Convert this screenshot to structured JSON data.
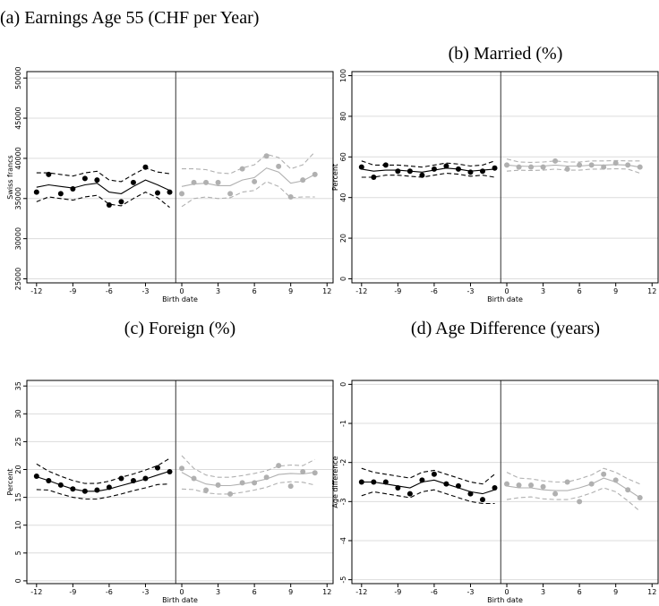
{
  "chart_data": [
    {
      "type": "scatter",
      "title": "(a) Earnings Age 55 (CHF per Year)",
      "xlabel": "Birth date",
      "ylabel": "Swiss francs",
      "xlim": [
        -12.8,
        12.5
      ],
      "ylim": [
        24500,
        50800
      ],
      "xticks": [
        -12,
        -9,
        -6,
        -3,
        0,
        3,
        6,
        9,
        12
      ],
      "yticks": [
        25000,
        30000,
        35000,
        40000,
        45000,
        50000
      ],
      "grid": true,
      "cutoff": -0.5,
      "series": [
        {
          "style": "markers",
          "color": "#000000",
          "x": [
            -12,
            -11,
            -10,
            -9,
            -8,
            -7,
            -6,
            -5,
            -4,
            -3,
            -2,
            -1
          ],
          "values": [
            35800,
            38000,
            35600,
            36200,
            37500,
            37300,
            34200,
            34600,
            37000,
            38900,
            35700,
            35800
          ]
        },
        {
          "style": "solid",
          "color": "#000000",
          "x": [
            -12,
            -11,
            -10,
            -9,
            -8,
            -7,
            -6,
            -5,
            -4,
            -3,
            -2,
            -1
          ],
          "values": [
            36400,
            36700,
            36500,
            36300,
            36700,
            36900,
            35800,
            35600,
            36500,
            37300,
            36700,
            36000
          ]
        },
        {
          "style": "dashed",
          "color": "#000000",
          "x": [
            -12,
            -11,
            -10,
            -9,
            -8,
            -7,
            -6,
            -5,
            -4,
            -3,
            -2,
            -1
          ],
          "values": [
            38200,
            38200,
            38000,
            37800,
            38200,
            38400,
            37300,
            37100,
            38000,
            38800,
            38300,
            38100
          ]
        },
        {
          "style": "dashed",
          "color": "#000000",
          "x": [
            -12,
            -11,
            -10,
            -9,
            -8,
            -7,
            -6,
            -5,
            -4,
            -3,
            -2,
            -1
          ],
          "values": [
            34600,
            35200,
            35000,
            34800,
            35200,
            35400,
            34300,
            34100,
            35000,
            35800,
            35100,
            33900
          ]
        },
        {
          "style": "markers",
          "color": "#b0b0b0",
          "x": [
            0,
            1,
            2,
            3,
            4,
            5,
            6,
            7,
            8,
            9,
            10,
            11
          ],
          "values": [
            35600,
            37000,
            37000,
            37000,
            35600,
            38700,
            37100,
            40300,
            39000,
            35200,
            37300,
            38000
          ]
        },
        {
          "style": "solid",
          "color": "#b0b0b0",
          "x": [
            0,
            1,
            2,
            3,
            4,
            5,
            6,
            7,
            8,
            9,
            10,
            11
          ],
          "values": [
            36500,
            36800,
            36900,
            36600,
            36600,
            37300,
            37600,
            38800,
            38300,
            36900,
            37200,
            38000
          ]
        },
        {
          "style": "dashed",
          "color": "#b0b0b0",
          "x": [
            0,
            1,
            2,
            3,
            4,
            5,
            6,
            7,
            8,
            9,
            10,
            11
          ],
          "values": [
            38700,
            38700,
            38600,
            38200,
            38100,
            38800,
            39200,
            40500,
            40100,
            38700,
            39200,
            40800
          ]
        },
        {
          "style": "dashed",
          "color": "#b0b0b0",
          "x": [
            0,
            1,
            2,
            3,
            4,
            5,
            6,
            7,
            8,
            9,
            10,
            11
          ],
          "values": [
            34000,
            35000,
            35200,
            35000,
            35100,
            35800,
            36000,
            37100,
            36500,
            35100,
            35200,
            35200
          ]
        }
      ]
    },
    {
      "type": "scatter",
      "title": "(b) Married (%)",
      "xlabel": "Birth date",
      "ylabel": "Percent",
      "xlim": [
        -12.8,
        12.5
      ],
      "ylim": [
        -2,
        102
      ],
      "xticks": [
        -12,
        -9,
        -6,
        -3,
        0,
        3,
        6,
        9,
        12
      ],
      "yticks": [
        0,
        20,
        40,
        60,
        80,
        100
      ],
      "grid": true,
      "cutoff": -0.5,
      "series": [
        {
          "style": "markers",
          "color": "#000000",
          "x": [
            -12,
            -11,
            -10,
            -9,
            -8,
            -7,
            -6,
            -5,
            -4,
            -3,
            -2,
            -1
          ],
          "values": [
            55,
            50,
            56,
            53,
            53,
            51,
            54,
            55.5,
            54,
            52.5,
            53,
            54.5
          ]
        },
        {
          "style": "solid",
          "color": "#000000",
          "x": [
            -12,
            -11,
            -10,
            -9,
            -8,
            -7,
            -6,
            -5,
            -4,
            -3,
            -2,
            -1
          ],
          "values": [
            54,
            53,
            53.5,
            53.5,
            53,
            52.5,
            53.5,
            54.5,
            54,
            53,
            53.5,
            54
          ]
        },
        {
          "style": "dashed",
          "color": "#000000",
          "x": [
            -12,
            -11,
            -10,
            -9,
            -8,
            -7,
            -6,
            -5,
            -4,
            -3,
            -2,
            -1
          ],
          "values": [
            58,
            56,
            56,
            56,
            55.5,
            55,
            56,
            57,
            56.5,
            55.5,
            56,
            58
          ]
        },
        {
          "style": "dashed",
          "color": "#000000",
          "x": [
            -12,
            -11,
            -10,
            -9,
            -8,
            -7,
            -6,
            -5,
            -4,
            -3,
            -2,
            -1
          ],
          "values": [
            50,
            50,
            51,
            51,
            50.5,
            50,
            51,
            52,
            51.5,
            50.5,
            51,
            50
          ]
        },
        {
          "style": "markers",
          "color": "#b0b0b0",
          "x": [
            0,
            1,
            2,
            3,
            4,
            5,
            6,
            7,
            8,
            9,
            10,
            11
          ],
          "values": [
            56,
            55,
            55,
            55,
            58,
            54,
            56,
            56,
            55,
            57,
            56,
            55
          ]
        },
        {
          "style": "solid",
          "color": "#b0b0b0",
          "x": [
            0,
            1,
            2,
            3,
            4,
            5,
            6,
            7,
            8,
            9,
            10,
            11
          ],
          "values": [
            56,
            55.5,
            55.3,
            55.5,
            56,
            55.5,
            55.5,
            56,
            56,
            56.2,
            56,
            55
          ]
        },
        {
          "style": "dashed",
          "color": "#b0b0b0",
          "x": [
            0,
            1,
            2,
            3,
            4,
            5,
            6,
            7,
            8,
            9,
            10,
            11
          ],
          "values": [
            59,
            57.5,
            57.3,
            57.5,
            58,
            57.5,
            57.5,
            58,
            58,
            58.2,
            58,
            58
          ]
        },
        {
          "style": "dashed",
          "color": "#b0b0b0",
          "x": [
            0,
            1,
            2,
            3,
            4,
            5,
            6,
            7,
            8,
            9,
            10,
            11
          ],
          "values": [
            53,
            53.5,
            53.3,
            53.5,
            54,
            53.5,
            53.5,
            54,
            54,
            54.2,
            54,
            52
          ]
        }
      ]
    },
    {
      "type": "scatter",
      "title": "(c) Foreign (%)",
      "xlabel": "Birth date",
      "ylabel": "Percent",
      "xlim": [
        -12.8,
        12.5
      ],
      "ylim": [
        -0.5,
        36
      ],
      "xticks": [
        -12,
        -9,
        -6,
        -3,
        0,
        3,
        6,
        9,
        12
      ],
      "yticks": [
        0,
        5,
        10,
        15,
        20,
        25,
        30,
        35
      ],
      "grid": true,
      "cutoff": -0.5,
      "series": [
        {
          "style": "markers",
          "color": "#000000",
          "x": [
            -12,
            -11,
            -10,
            -9,
            -8,
            -7,
            -6,
            -5,
            -4,
            -3,
            -2,
            -1
          ],
          "values": [
            18.8,
            18.0,
            17.2,
            16.5,
            16.1,
            16.3,
            16.8,
            18.4,
            18.0,
            18.4,
            20.3,
            19.6
          ]
        },
        {
          "style": "solid",
          "color": "#000000",
          "x": [
            -12,
            -11,
            -10,
            -9,
            -8,
            -7,
            -6,
            -5,
            -4,
            -3,
            -2,
            -1
          ],
          "values": [
            18.7,
            18.0,
            17.2,
            16.5,
            16.1,
            16.1,
            16.5,
            17.1,
            17.7,
            18.3,
            19.0,
            19.7
          ]
        },
        {
          "style": "dashed",
          "color": "#000000",
          "x": [
            -12,
            -11,
            -10,
            -9,
            -8,
            -7,
            -6,
            -5,
            -4,
            -3,
            -2,
            -1
          ],
          "values": [
            21.0,
            19.7,
            18.8,
            18.0,
            17.5,
            17.5,
            17.9,
            18.6,
            19.2,
            19.9,
            20.7,
            22.0
          ]
        },
        {
          "style": "dashed",
          "color": "#000000",
          "x": [
            -12,
            -11,
            -10,
            -9,
            -8,
            -7,
            -6,
            -5,
            -4,
            -3,
            -2,
            -1
          ],
          "values": [
            16.4,
            16.3,
            15.6,
            15.0,
            14.7,
            14.7,
            15.1,
            15.6,
            16.2,
            16.7,
            17.3,
            17.4
          ]
        },
        {
          "style": "markers",
          "color": "#b0b0b0",
          "x": [
            0,
            1,
            2,
            3,
            4,
            5,
            6,
            7,
            8,
            9,
            10,
            11
          ],
          "values": [
            20.2,
            18.4,
            16.3,
            17.2,
            15.6,
            17.6,
            17.6,
            18.6,
            20.7,
            17.0,
            19.6,
            19.4
          ]
        },
        {
          "style": "solid",
          "color": "#b0b0b0",
          "x": [
            0,
            1,
            2,
            3,
            4,
            5,
            6,
            7,
            8,
            9,
            10,
            11
          ],
          "values": [
            19.5,
            18.3,
            17.4,
            17.1,
            17.1,
            17.4,
            17.8,
            18.3,
            19.1,
            19.3,
            19.2,
            19.5
          ]
        },
        {
          "style": "dashed",
          "color": "#b0b0b0",
          "x": [
            0,
            1,
            2,
            3,
            4,
            5,
            6,
            7,
            8,
            9,
            10,
            11
          ],
          "values": [
            22.5,
            20.2,
            19.0,
            18.6,
            18.6,
            18.9,
            19.3,
            19.8,
            20.6,
            20.8,
            20.7,
            21.8
          ]
        },
        {
          "style": "dashed",
          "color": "#b0b0b0",
          "x": [
            0,
            1,
            2,
            3,
            4,
            5,
            6,
            7,
            8,
            9,
            10,
            11
          ],
          "values": [
            16.5,
            16.4,
            15.8,
            15.6,
            15.6,
            15.9,
            16.3,
            16.8,
            17.6,
            17.8,
            17.7,
            17.2
          ]
        }
      ]
    },
    {
      "type": "scatter",
      "title": "(d) Age Difference (years)",
      "xlabel": "Birth date",
      "ylabel": "Age difference",
      "xlim": [
        -12.8,
        12.5
      ],
      "ylim": [
        -5.1,
        0.1
      ],
      "xticks": [
        -12,
        -9,
        -6,
        -3,
        0,
        3,
        6,
        9,
        12
      ],
      "yticks": [
        0,
        -1,
        -2,
        -3,
        -4,
        -5
      ],
      "grid": true,
      "cutoff": -0.5,
      "series": [
        {
          "style": "markers",
          "color": "#000000",
          "x": [
            -12,
            -11,
            -10,
            -9,
            -8,
            -7,
            -6,
            -5,
            -4,
            -3,
            -2,
            -1
          ],
          "values": [
            -2.5,
            -2.5,
            -2.5,
            -2.65,
            -2.8,
            -2.45,
            -2.3,
            -2.55,
            -2.6,
            -2.8,
            -2.95,
            -2.65
          ]
        },
        {
          "style": "solid",
          "color": "#000000",
          "x": [
            -12,
            -11,
            -10,
            -9,
            -8,
            -7,
            -6,
            -5,
            -4,
            -3,
            -2,
            -1
          ],
          "values": [
            -2.5,
            -2.5,
            -2.55,
            -2.6,
            -2.65,
            -2.5,
            -2.45,
            -2.55,
            -2.65,
            -2.75,
            -2.8,
            -2.7
          ]
        },
        {
          "style": "dashed",
          "color": "#000000",
          "x": [
            -12,
            -11,
            -10,
            -9,
            -8,
            -7,
            -6,
            -5,
            -4,
            -3,
            -2,
            -1
          ],
          "values": [
            -2.15,
            -2.25,
            -2.3,
            -2.35,
            -2.4,
            -2.25,
            -2.2,
            -2.3,
            -2.4,
            -2.5,
            -2.55,
            -2.3
          ]
        },
        {
          "style": "dashed",
          "color": "#000000",
          "x": [
            -12,
            -11,
            -10,
            -9,
            -8,
            -7,
            -6,
            -5,
            -4,
            -3,
            -2,
            -1
          ],
          "values": [
            -2.85,
            -2.75,
            -2.8,
            -2.85,
            -2.9,
            -2.75,
            -2.7,
            -2.8,
            -2.9,
            -3.0,
            -3.05,
            -3.05
          ]
        },
        {
          "style": "markers",
          "color": "#b0b0b0",
          "x": [
            0,
            1,
            2,
            3,
            4,
            5,
            6,
            7,
            8,
            9,
            10,
            11
          ],
          "values": [
            -2.55,
            -2.58,
            -2.58,
            -2.62,
            -2.8,
            -2.5,
            -3.0,
            -2.55,
            -2.3,
            -2.45,
            -2.7,
            -2.9
          ]
        },
        {
          "style": "solid",
          "color": "#b0b0b0",
          "x": [
            0,
            1,
            2,
            3,
            4,
            5,
            6,
            7,
            8,
            9,
            10,
            11
          ],
          "values": [
            -2.6,
            -2.65,
            -2.65,
            -2.7,
            -2.72,
            -2.72,
            -2.65,
            -2.55,
            -2.4,
            -2.5,
            -2.7,
            -2.9
          ]
        },
        {
          "style": "dashed",
          "color": "#b0b0b0",
          "x": [
            0,
            1,
            2,
            3,
            4,
            5,
            6,
            7,
            8,
            9,
            10,
            11
          ],
          "values": [
            -2.25,
            -2.4,
            -2.42,
            -2.47,
            -2.5,
            -2.5,
            -2.42,
            -2.32,
            -2.15,
            -2.25,
            -2.42,
            -2.55
          ]
        },
        {
          "style": "dashed",
          "color": "#b0b0b0",
          "x": [
            0,
            1,
            2,
            3,
            4,
            5,
            6,
            7,
            8,
            9,
            10,
            11
          ],
          "values": [
            -2.95,
            -2.9,
            -2.88,
            -2.93,
            -2.95,
            -2.95,
            -2.88,
            -2.78,
            -2.65,
            -2.75,
            -2.98,
            -3.25
          ]
        }
      ]
    }
  ]
}
